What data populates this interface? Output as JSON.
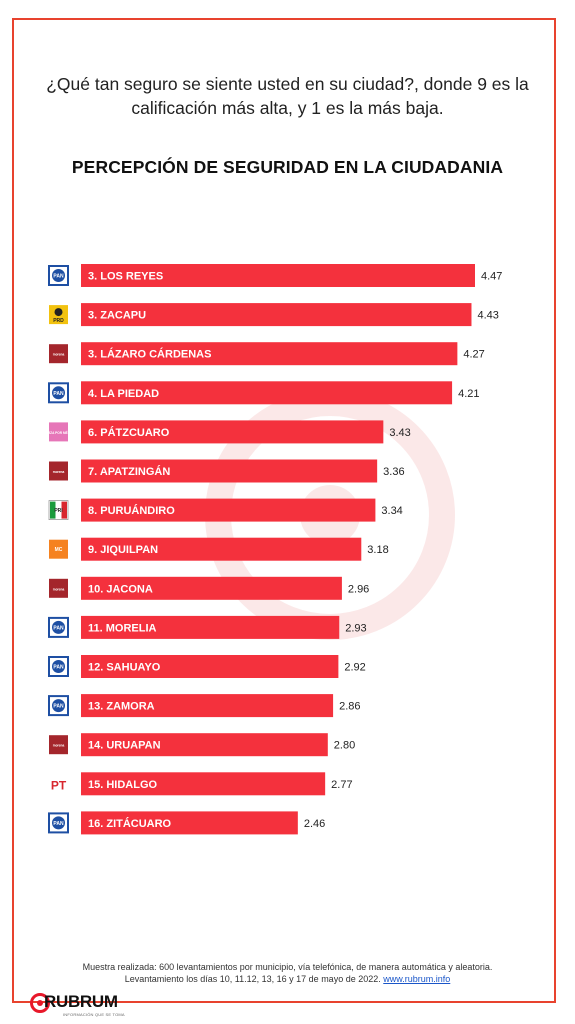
{
  "question": "¿Qué tan seguro se siente usted en su ciudad?, donde 9 es la calificación más alta, y  1 es la más baja.",
  "footer": {
    "line1": "Muestra realizada: 600 levantamientos por municipio, vía telefónica, de manera automática y aleatoria.",
    "line2": "Levantamiento los días 10, 11.12, 13, 16 y 17 de mayo de 2022.",
    "link": "www.rubrum.info"
  },
  "brand": {
    "name": "RUBRUM",
    "tagline": "INFORMACIÓN QUE SE TOMA"
  },
  "colors": {
    "bar": "#f4313d",
    "frame": "#e8432e",
    "brand_red": "#e8182a"
  },
  "chart_data": {
    "type": "bar",
    "orientation": "horizontal",
    "title": "PERCEPCIÓN DE SEGURIDAD EN LA CIUDADANIA",
    "categories": [
      "3. LOS REYES",
      "3. ZACAPU",
      "3. LÁZARO CÁRDENAS",
      "4. LA PIEDAD",
      "6. PÁTZCUARO",
      "7. APATZINGÁN",
      "8. PURUÁNDIRO",
      "9. JIQUILPAN",
      "10. JACONA",
      "11. MORELIA",
      "12. SAHUAYO",
      "13. ZAMORA",
      "14. URUAPAN",
      "15. HIDALGO",
      "16. ZITÁCUARO"
    ],
    "values": [
      4.47,
      4.43,
      4.27,
      4.21,
      3.43,
      3.36,
      3.34,
      3.18,
      2.96,
      2.93,
      2.92,
      2.86,
      2.8,
      2.77,
      2.46
    ],
    "value_labels": [
      "4.47",
      "4.43",
      "4.27",
      "4.21",
      "3.43",
      "3.36",
      "3.34",
      "3.18",
      "2.96",
      "2.93",
      "2.92",
      "2.86",
      "2.80",
      "2.77",
      "2.46"
    ],
    "party_icons": [
      {
        "name": "pan-logo-icon",
        "text": "PAN",
        "color": "#1e4fa3"
      },
      {
        "name": "prd-logo-icon",
        "text": "PRD",
        "color": "#f2c20f"
      },
      {
        "name": "morena-logo-icon",
        "text": "morena",
        "color": "#a4262c"
      },
      {
        "name": "pan-logo-icon",
        "text": "PAN",
        "color": "#1e4fa3"
      },
      {
        "name": "fuerza-por-mexico-logo-icon",
        "text": "FUERZA POR MÉXICO",
        "color": "#e676b8"
      },
      {
        "name": "morena-logo-icon",
        "text": "morena",
        "color": "#a4262c"
      },
      {
        "name": "pri-logo-icon",
        "text": "PRI",
        "color": "#1a9b3c"
      },
      {
        "name": "movimiento-ciudadano-logo-icon",
        "text": "MC",
        "color": "#f58220"
      },
      {
        "name": "morena-logo-icon",
        "text": "morena",
        "color": "#a4262c"
      },
      {
        "name": "pan-logo-icon",
        "text": "PAN",
        "color": "#1e4fa3"
      },
      {
        "name": "pan-logo-icon",
        "text": "PAN",
        "color": "#1e4fa3"
      },
      {
        "name": "pan-logo-icon",
        "text": "PAN",
        "color": "#1e4fa3"
      },
      {
        "name": "morena-logo-icon",
        "text": "morena",
        "color": "#a4262c"
      },
      {
        "name": "pt-logo-icon",
        "text": "PT",
        "color": "#d8262e"
      },
      {
        "name": "pan-logo-icon",
        "text": "PAN",
        "color": "#1e4fa3"
      }
    ],
    "xlim": [
      0,
      4.47
    ],
    "grid": false,
    "legend": "none"
  }
}
